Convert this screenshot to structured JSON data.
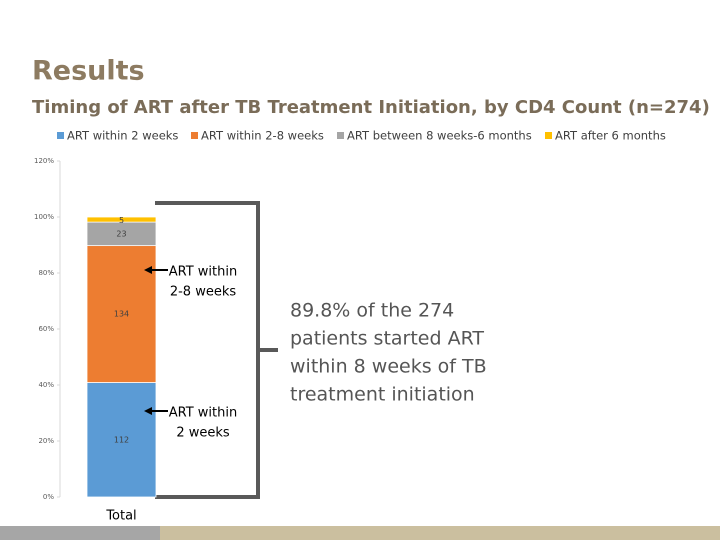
{
  "chart_data": {
    "type": "bar",
    "stacking": "percent",
    "heading": "Results",
    "title": "Timing of ART after TB Treatment Initiation, by CD4 Count (n=274)",
    "categories": [
      "Total"
    ],
    "series": [
      {
        "name": "ART within 2 weeks",
        "color": "#5b9bd5",
        "values": [
          112
        ]
      },
      {
        "name": "ART within 2-8 weeks",
        "color": "#ed7d31",
        "values": [
          134
        ]
      },
      {
        "name": "ART between 8 weeks-6 months",
        "color": "#a5a5a5",
        "values": [
          23
        ]
      },
      {
        "name": "ART after 6 months",
        "color": "#ffc000",
        "values": [
          5
        ]
      }
    ],
    "ylim": [
      0,
      120
    ],
    "yticks": [
      {
        "value": 0,
        "label": "0%"
      },
      {
        "value": 20,
        "label": "20%"
      },
      {
        "value": 40,
        "label": "40%"
      },
      {
        "value": 60,
        "label": "60%"
      },
      {
        "value": 80,
        "label": "80%"
      },
      {
        "value": 100,
        "label": "100%"
      },
      {
        "value": 120,
        "label": "120%"
      }
    ],
    "legend": "top",
    "annotations": [
      {
        "lines": [
          "ART within",
          "2-8 weeks"
        ]
      },
      {
        "lines": [
          "ART within",
          "2 weeks"
        ]
      }
    ],
    "note": {
      "lines": [
        "89.8% of the 274",
        "patients started ART",
        "within 8 weeks of TB",
        "treatment initiation"
      ]
    }
  }
}
